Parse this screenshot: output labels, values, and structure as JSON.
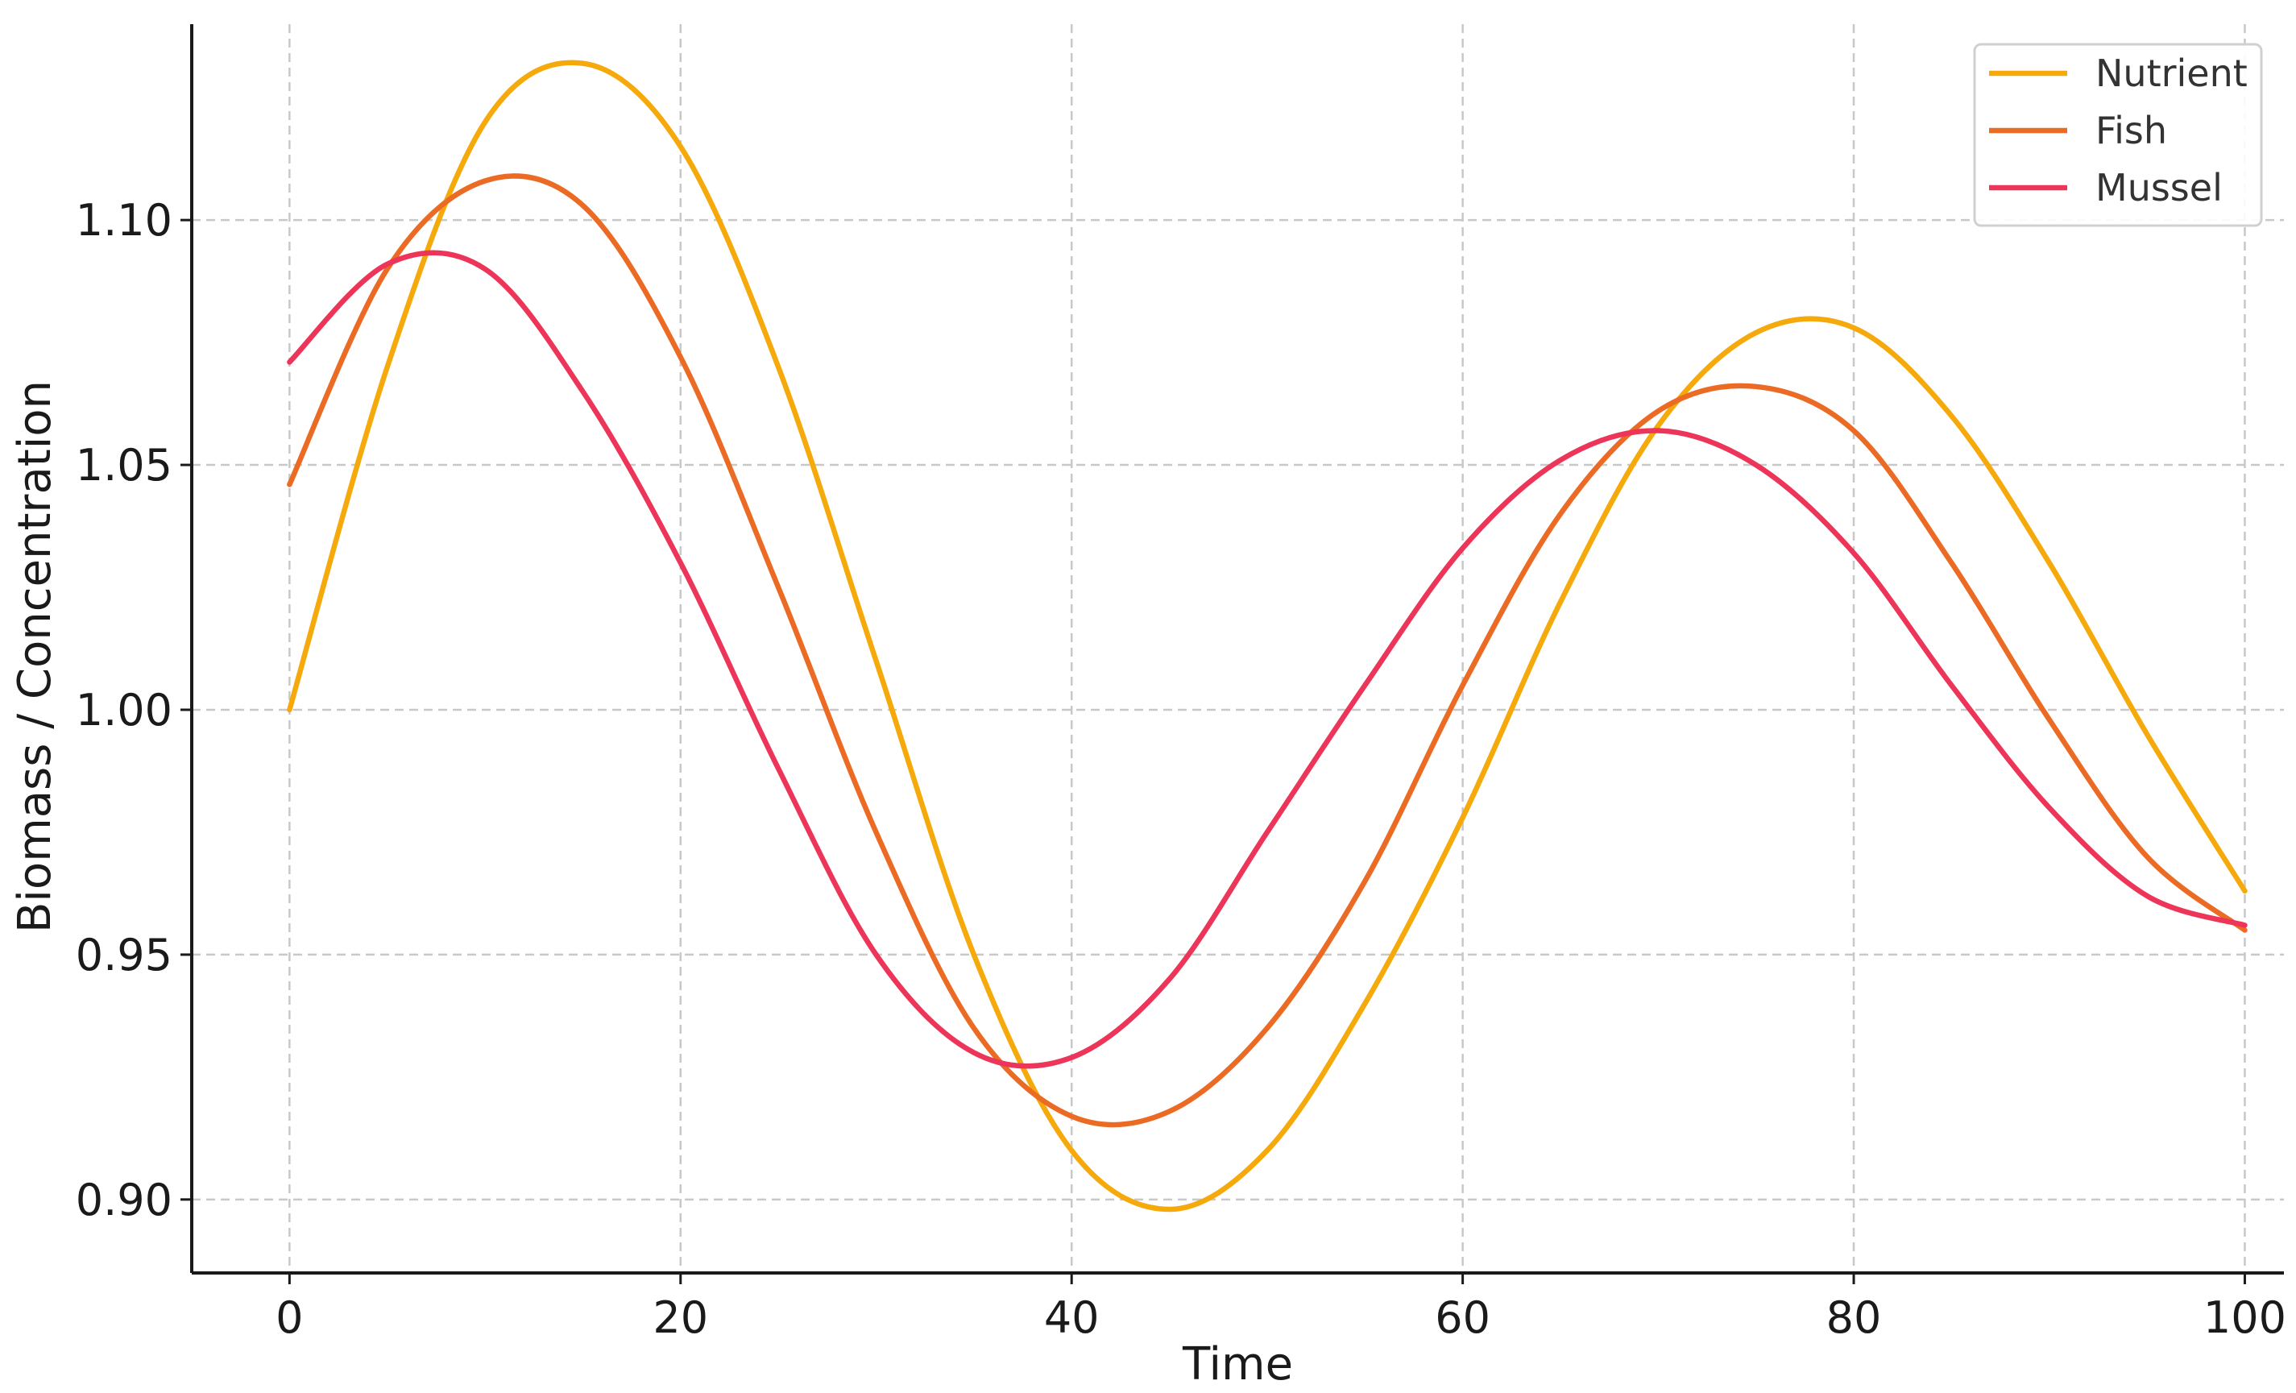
{
  "chart_data": {
    "type": "line",
    "title": "",
    "xlabel": "Time",
    "ylabel": "Biomass / Concentration",
    "xlim": [
      -5,
      102
    ],
    "ylim": [
      0.885,
      1.14
    ],
    "xticks": [
      0,
      20,
      40,
      60,
      80,
      100
    ],
    "yticks": [
      0.9,
      0.95,
      1.0,
      1.05,
      1.1
    ],
    "xtick_labels": [
      "0",
      "20",
      "40",
      "60",
      "80",
      "100"
    ],
    "ytick_labels": [
      "0.90",
      "0.95",
      "1.00",
      "1.05",
      "1.10"
    ],
    "grid": true,
    "legend_position": "top-right",
    "x": [
      0,
      5,
      10,
      15,
      20,
      25,
      30,
      35,
      40,
      45,
      50,
      55,
      60,
      65,
      70,
      75,
      80,
      85,
      90,
      95,
      100
    ],
    "series": [
      {
        "name": "Nutrient",
        "color": "#f5a90a",
        "values": [
          1.0,
          1.07,
          1.12,
          1.132,
          1.115,
          1.07,
          1.01,
          0.95,
          0.91,
          0.898,
          0.91,
          0.94,
          0.978,
          1.022,
          1.058,
          1.077,
          1.078,
          1.06,
          1.03,
          0.995,
          0.963
        ]
      },
      {
        "name": "Fish",
        "color": "#ec6b24",
        "values": [
          1.046,
          1.09,
          1.108,
          1.103,
          1.072,
          1.025,
          0.975,
          0.935,
          0.917,
          0.918,
          0.935,
          0.965,
          1.005,
          1.04,
          1.061,
          1.066,
          1.057,
          1.03,
          0.998,
          0.97,
          0.955
        ]
      },
      {
        "name": "Mussel",
        "color": "#ec3558",
        "values": [
          1.071,
          1.091,
          1.09,
          1.065,
          1.03,
          0.988,
          0.95,
          0.93,
          0.929,
          0.945,
          0.975,
          1.005,
          1.033,
          1.051,
          1.057,
          1.05,
          1.032,
          1.005,
          0.98,
          0.962,
          0.956
        ]
      }
    ]
  }
}
